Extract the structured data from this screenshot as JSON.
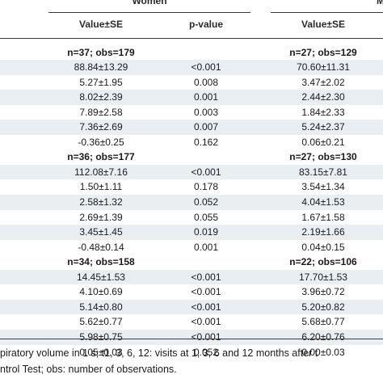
{
  "header": {
    "women_label": "Women",
    "men_label": "Men",
    "value_se_label": "Value±SE",
    "p_value_label": "p-value",
    "men_value_se_label": "Value±SE"
  },
  "groups": [
    {
      "women_n": "n=37; obs=179",
      "men_n": "n=27; obs=129",
      "rows": [
        {
          "women": "88.84±13.29",
          "p": "<0.001",
          "men": "70.60±11.31"
        },
        {
          "women": "5.27±1.95",
          "p": "0.008",
          "men": "3.47±2.02"
        },
        {
          "women": "8.02±2.39",
          "p": "0.001",
          "men": "2.44±2.30"
        },
        {
          "women": "7.89±2.58",
          "p": "0.003",
          "men": "1.84±2.33"
        },
        {
          "women": "7.36±2.69",
          "p": "0.007",
          "men": "5.24±2.37"
        },
        {
          "women": "-0.36±0.25",
          "p": "0.162",
          "men": "0.06±0.21"
        }
      ]
    },
    {
      "women_n": "n=36; obs=177",
      "men_n": "n=27; obs=130",
      "rows": [
        {
          "women": "112.08±7.16",
          "p": "<0.001",
          "men": "83.15±7.81"
        },
        {
          "women": "1.50±1.11",
          "p": "0.178",
          "men": "3.54±1.34"
        },
        {
          "women": "2.58±1.32",
          "p": "0.052",
          "men": "4.04±1.53"
        },
        {
          "women": "2.69±1.39",
          "p": "0.055",
          "men": "1.67±1.58"
        },
        {
          "women": "3.45±1.45",
          "p": "0.019",
          "men": "2.19±1.66"
        },
        {
          "women": "-0.48±0.14",
          "p": "0.001",
          "men": "0.04±0.15"
        }
      ]
    },
    {
      "women_n": "n=34; obs=158",
      "men_n": "n=22; obs=106",
      "rows": [
        {
          "women": "14.45±1.53",
          "p": "<0.001",
          "men": "17.70±1.53"
        },
        {
          "women": "4.10±0.69",
          "p": "<0.001",
          "men": "3.96±0.72"
        },
        {
          "women": "5.14±0.80",
          "p": "<0.001",
          "men": "5.20±0.82"
        },
        {
          "women": "5.62±0.77",
          "p": "<0.001",
          "men": "5.68±0.77"
        },
        {
          "women": "5.98±0.75",
          "p": "<0.001",
          "men": "6.20±0.76"
        },
        {
          "women": "0.05±0.03",
          "p": "0.052",
          "men": "0.00±0.03"
        }
      ]
    }
  ],
  "footnote": {
    "line1": "piratory volume in 1 s; t1, 3, 6, 12: visits at 1, 3, 6 and 12 months after t",
    "line2": "ntrol Test; obs: number of observations."
  },
  "colors": {
    "header_bg": "#ffffff",
    "shaded_row": "#e9eef3",
    "rule": "#3a3a3a"
  }
}
